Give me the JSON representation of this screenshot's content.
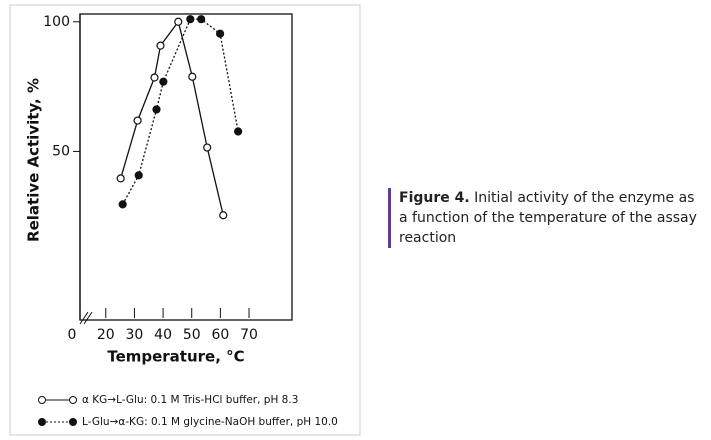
{
  "chart_data": {
    "type": "line",
    "ylabel": "Relative Activity, %",
    "xlabel": "Temperature, °C",
    "x_break_label": "0",
    "xlim": [
      11,
      85
    ],
    "ylim": [
      -15,
      103
    ],
    "xticks": [
      20,
      30,
      40,
      50,
      60,
      70
    ],
    "yticks": [
      50,
      100
    ],
    "series": [
      {
        "name": "α KG→L-Glu: 0.1 M Tris-HCl buffer, pH 8.3",
        "color": "#111111",
        "marker": "open",
        "line_style": "solid",
        "x": [
          25.2,
          31.1,
          37.0,
          39.1,
          45.3,
          50.2,
          55.4,
          61.0
        ],
        "values": [
          39.6,
          61.9,
          78.5,
          90.8,
          100,
          78.8,
          51.5,
          25.4
        ]
      },
      {
        "name": "L-Glu→α-KG: 0.1 M glycine-NaOH buffer, pH 10.0",
        "color": "#111111",
        "marker": "filled",
        "line_style": "dotted",
        "x": [
          25.9,
          31.5,
          37.7,
          40.1,
          49.5,
          53.3,
          59.9,
          66.2
        ],
        "values": [
          29.6,
          40.8,
          66.2,
          76.9,
          101,
          101,
          95.4,
          57.7
        ]
      }
    ]
  },
  "caption": {
    "label": "Figure 4.",
    "text": "Initial activity of the enzyme as a function of the temperature of the assay reaction"
  }
}
